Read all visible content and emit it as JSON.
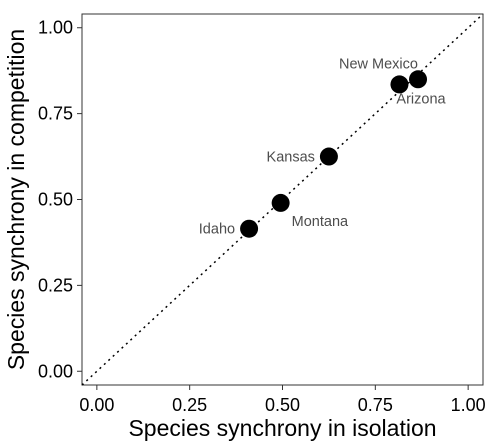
{
  "chart_data": {
    "type": "scatter",
    "xlabel": "Species synchrony in isolation",
    "ylabel": "Species synchrony in competition",
    "xlim": [
      -0.04,
      1.04
    ],
    "ylim": [
      -0.04,
      1.04
    ],
    "x_ticks": [
      "0.00",
      "0.25",
      "0.50",
      "0.75",
      "1.00"
    ],
    "y_ticks": [
      "0.00",
      "0.25",
      "0.50",
      "0.75",
      "1.00"
    ],
    "grid": false,
    "reference_line": "1:1 dotted",
    "points": [
      {
        "label": "Idaho",
        "x": 0.41,
        "y": 0.415,
        "label_pos": "left"
      },
      {
        "label": "Montana",
        "x": 0.495,
        "y": 0.49,
        "label_pos": "below-right"
      },
      {
        "label": "Kansas",
        "x": 0.625,
        "y": 0.625,
        "label_pos": "left"
      },
      {
        "label": "New Mexico",
        "x": 0.815,
        "y": 0.835,
        "label_pos": "above"
      },
      {
        "label": "Arizona",
        "x": 0.865,
        "y": 0.85,
        "label_pos": "below"
      }
    ]
  }
}
